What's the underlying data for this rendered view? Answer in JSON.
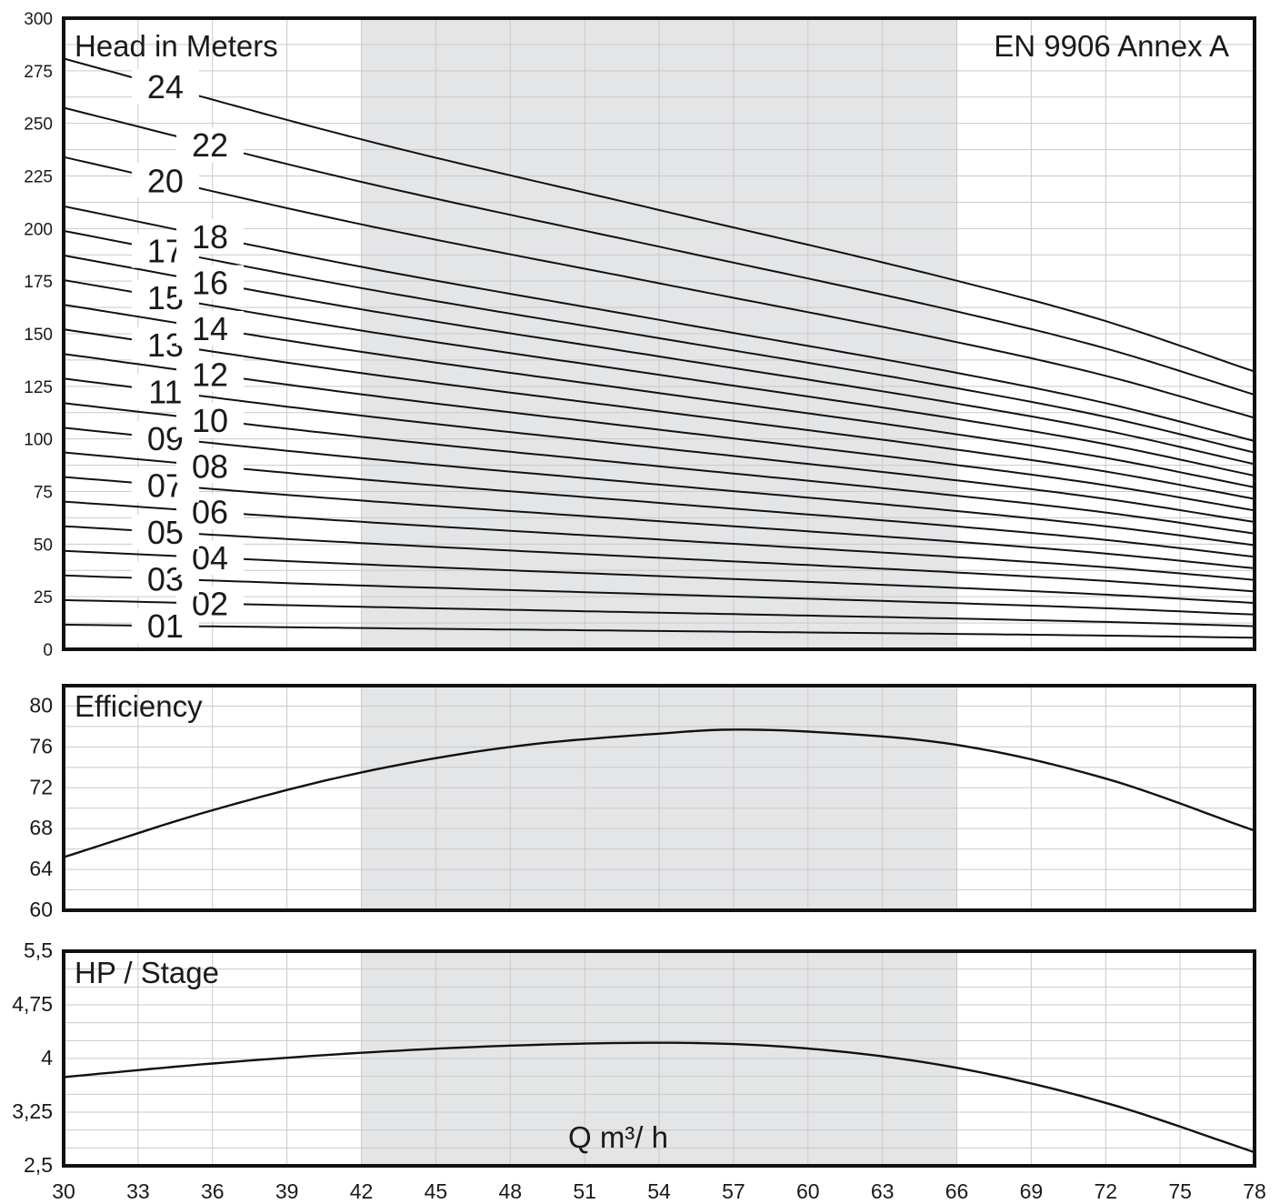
{
  "colors": {
    "line": "#111111",
    "grid": "#c9c9c9",
    "band": "#e4e5e7",
    "frame": "#111111",
    "text": "#1a1a1a",
    "label_bg": "#ffffff"
  },
  "chart_data": [
    {
      "type": "line",
      "title": "Head in Meters",
      "annotation": "EN 9906 Annex A",
      "xlim": [
        30,
        78
      ],
      "ylim": [
        0,
        300
      ],
      "yticks": [
        "0",
        "25",
        "50",
        "75",
        "100",
        "125",
        "150",
        "175",
        "200",
        "225",
        "250",
        "275",
        "300"
      ],
      "recommended_range": [
        42,
        66
      ],
      "grid": true,
      "x": [
        30,
        42,
        54,
        66,
        72,
        78
      ],
      "head_per_stage": [
        11.7,
        10.1,
        8.7,
        7.3,
        6.5,
        5.5
      ],
      "series": [
        {
          "name": "01",
          "stages": 1
        },
        {
          "name": "02",
          "stages": 2
        },
        {
          "name": "03",
          "stages": 3
        },
        {
          "name": "04",
          "stages": 4
        },
        {
          "name": "05",
          "stages": 5
        },
        {
          "name": "06",
          "stages": 6
        },
        {
          "name": "07",
          "stages": 7
        },
        {
          "name": "08",
          "stages": 8
        },
        {
          "name": "09",
          "stages": 9
        },
        {
          "name": "10",
          "stages": 10
        },
        {
          "name": "11",
          "stages": 11
        },
        {
          "name": "12",
          "stages": 12
        },
        {
          "name": "13",
          "stages": 13
        },
        {
          "name": "14",
          "stages": 14
        },
        {
          "name": "15",
          "stages": 15
        },
        {
          "name": "16",
          "stages": 16
        },
        {
          "name": "17",
          "stages": 17
        },
        {
          "name": "18",
          "stages": 18
        },
        {
          "name": "20",
          "stages": 20
        },
        {
          "name": "22",
          "stages": 22
        },
        {
          "name": "24",
          "stages": 24
        }
      ]
    },
    {
      "type": "line",
      "title": "Efficiency",
      "xlim": [
        30,
        78
      ],
      "ylim": [
        60,
        82
      ],
      "yticks": [
        "60",
        "64",
        "68",
        "72",
        "76",
        "80"
      ],
      "recommended_range": [
        42,
        66
      ],
      "grid": true,
      "x": [
        30,
        36,
        42,
        48,
        54,
        57,
        60,
        66,
        72,
        78
      ],
      "values": [
        65.2,
        69.8,
        73.5,
        76.0,
        77.3,
        77.7,
        77.5,
        76.2,
        72.9,
        67.8
      ]
    },
    {
      "type": "line",
      "title": "HP / Stage",
      "xlabel": "Q m³/ h",
      "xlim": [
        30,
        78
      ],
      "ylim": [
        2.5,
        5.5
      ],
      "yticks": [
        "2,5",
        "3,25",
        "4",
        "4,75",
        "5,5"
      ],
      "xticks": [
        "30",
        "33",
        "36",
        "39",
        "42",
        "45",
        "48",
        "51",
        "54",
        "57",
        "60",
        "63",
        "66",
        "69",
        "72",
        "75",
        "78"
      ],
      "recommended_range": [
        42,
        66
      ],
      "grid": true,
      "x": [
        30,
        36,
        42,
        48,
        54,
        60,
        66,
        72,
        78
      ],
      "values": [
        3.74,
        3.93,
        4.08,
        4.18,
        4.22,
        4.14,
        3.87,
        3.38,
        2.69
      ]
    }
  ]
}
